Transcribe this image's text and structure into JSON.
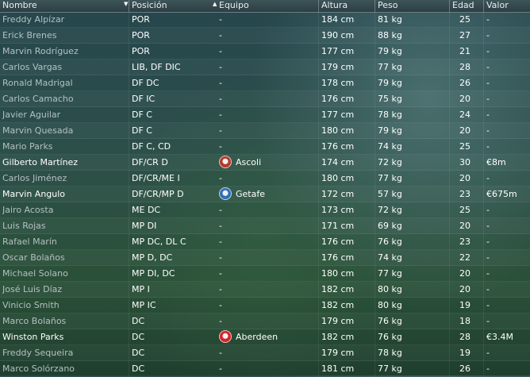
{
  "columns": {
    "name": "Nombre",
    "position": "Posición",
    "team": "Equipo",
    "height": "Altura",
    "weight": "Peso",
    "age": "Edad",
    "value": "Valor"
  },
  "sort_indicator": "▼",
  "team_sort_indicator": "▲",
  "crest_colors": {
    "Ascoli": "#b33a2a",
    "Getafe": "#2f6fb5",
    "Aberdeen": "#d8232a"
  },
  "players": [
    {
      "name": "Freddy Alpízar",
      "position": "POR",
      "team": "-",
      "height": "184 cm",
      "weight": "81 kg",
      "age": "25",
      "value": "-",
      "strong": false
    },
    {
      "name": "Erick Brenes",
      "position": "POR",
      "team": "-",
      "height": "190 cm",
      "weight": "88 kg",
      "age": "27",
      "value": "-",
      "strong": false
    },
    {
      "name": "Marvin Rodríguez",
      "position": "POR",
      "team": "-",
      "height": "177 cm",
      "weight": "79 kg",
      "age": "21",
      "value": "-",
      "strong": false
    },
    {
      "name": "Carlos Vargas",
      "position": "LIB, DF DIC",
      "team": "-",
      "height": "179 cm",
      "weight": "77 kg",
      "age": "28",
      "value": "-",
      "strong": false
    },
    {
      "name": "Ronald Madrigal",
      "position": "DF DC",
      "team": "-",
      "height": "178 cm",
      "weight": "79 kg",
      "age": "26",
      "value": "-",
      "strong": false
    },
    {
      "name": "Carlos Camacho",
      "position": "DF IC",
      "team": "-",
      "height": "176 cm",
      "weight": "75 kg",
      "age": "20",
      "value": "-",
      "strong": false
    },
    {
      "name": "Javier Aguilar",
      "position": "DF C",
      "team": "-",
      "height": "177 cm",
      "weight": "78 kg",
      "age": "24",
      "value": "-",
      "strong": false
    },
    {
      "name": "Marvin Quesada",
      "position": "DF C",
      "team": "-",
      "height": "180 cm",
      "weight": "79 kg",
      "age": "20",
      "value": "-",
      "strong": false
    },
    {
      "name": "Mario Parks",
      "position": "DF C, CD",
      "team": "-",
      "height": "176 cm",
      "weight": "74 kg",
      "age": "25",
      "value": "-",
      "strong": false
    },
    {
      "name": "Gilberto Martínez",
      "position": "DF/CR D",
      "team": "Ascoli",
      "height": "174 cm",
      "weight": "72 kg",
      "age": "30",
      "value": "€8m",
      "strong": true
    },
    {
      "name": "Carlos Jiménez",
      "position": "DF/CR/ME I",
      "team": "-",
      "height": "180 cm",
      "weight": "77 kg",
      "age": "20",
      "value": "-",
      "strong": false
    },
    {
      "name": "Marvin Angulo",
      "position": "DF/CR/MP D",
      "team": "Getafe",
      "height": "172 cm",
      "weight": "57 kg",
      "age": "23",
      "value": "€675m",
      "strong": true
    },
    {
      "name": "Jairo Acosta",
      "position": "ME DC",
      "team": "-",
      "height": "173 cm",
      "weight": "72 kg",
      "age": "25",
      "value": "-",
      "strong": false
    },
    {
      "name": "Luis Rojas",
      "position": "MP DI",
      "team": "-",
      "height": "171 cm",
      "weight": "69 kg",
      "age": "20",
      "value": "-",
      "strong": false
    },
    {
      "name": "Rafael Marín",
      "position": "MP DC, DL C",
      "team": "-",
      "height": "176 cm",
      "weight": "76 kg",
      "age": "23",
      "value": "-",
      "strong": false
    },
    {
      "name": "Oscar Bolaños",
      "position": "MP D, DC",
      "team": "-",
      "height": "176 cm",
      "weight": "74 kg",
      "age": "22",
      "value": "-",
      "strong": false
    },
    {
      "name": "Michael Solano",
      "position": "MP DI, DC",
      "team": "-",
      "height": "180 cm",
      "weight": "77 kg",
      "age": "20",
      "value": "-",
      "strong": false
    },
    {
      "name": "José Luis Díaz",
      "position": "MP I",
      "team": "-",
      "height": "182 cm",
      "weight": "80 kg",
      "age": "20",
      "value": "-",
      "strong": false
    },
    {
      "name": "Vinicio Smith",
      "position": "MP IC",
      "team": "-",
      "height": "182 cm",
      "weight": "80 kg",
      "age": "19",
      "value": "-",
      "strong": false
    },
    {
      "name": "Marco Bolaños",
      "position": "DC",
      "team": "-",
      "height": "179 cm",
      "weight": "76 kg",
      "age": "18",
      "value": "-",
      "strong": false
    },
    {
      "name": "Winston Parks",
      "position": "DC",
      "team": "Aberdeen",
      "height": "182 cm",
      "weight": "76 kg",
      "age": "28",
      "value": "€3.4M",
      "strong": true
    },
    {
      "name": "Freddy Sequeira",
      "position": "DC",
      "team": "-",
      "height": "179 cm",
      "weight": "78 kg",
      "age": "19",
      "value": "-",
      "strong": false
    },
    {
      "name": "Marco Solórzano",
      "position": "DC",
      "team": "-",
      "height": "181 cm",
      "weight": "77 kg",
      "age": "26",
      "value": "-",
      "strong": false
    }
  ]
}
